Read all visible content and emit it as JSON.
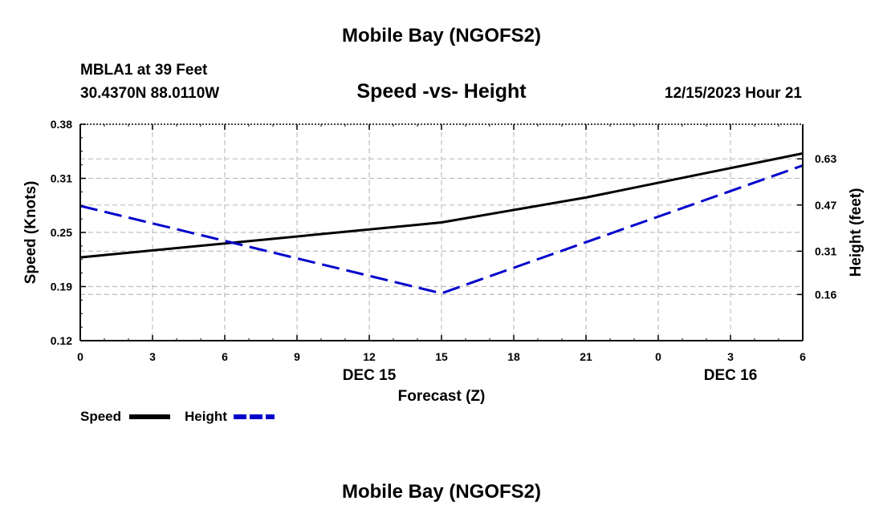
{
  "header": {
    "title": "Mobile Bay (NGOFS2)",
    "station": "MBLA1 at 39 Feet",
    "coords": "30.4370N  88.0110W",
    "subtitle": "Speed -vs- Height",
    "datetime": "12/15/2023 Hour 21"
  },
  "footer": {
    "title": "Mobile Bay (NGOFS2)"
  },
  "chart_data": {
    "type": "line",
    "title": "Speed -vs- Height",
    "xlabel": "Forecast (Z)",
    "ylabel": "Speed (Knots)",
    "y2label": "Height (feet)",
    "x": [
      0,
      15,
      21,
      30
    ],
    "x_ticks": [
      "0",
      "3",
      "6",
      "9",
      "12",
      "15",
      "18",
      "21",
      "0",
      "3",
      "6"
    ],
    "x_range": [
      0,
      30
    ],
    "date_labels": [
      {
        "label": "DEC 15",
        "x": 12
      },
      {
        "label": "DEC 16",
        "x": 27
      }
    ],
    "ylim": [
      0.12,
      0.38
    ],
    "y_ticks": [
      "0.38",
      "0.31",
      "0.25",
      "0.19",
      "0.12"
    ],
    "y2lim": [
      0.0,
      0.75
    ],
    "y2_ticks": [
      "0.63",
      "0.47",
      "0.31",
      "0.16"
    ],
    "grid": true,
    "legend_position": "bottom-left",
    "series": [
      {
        "name": "Speed",
        "axis": "left",
        "color": "#000000",
        "dash": "solid",
        "x": [
          0,
          15,
          21,
          30
        ],
        "values": [
          0.22,
          0.262,
          0.292,
          0.345
        ]
      },
      {
        "name": "Height",
        "axis": "right",
        "color": "#0000cc",
        "dash": "dashed",
        "x": [
          0,
          15,
          30
        ],
        "values": [
          0.467,
          0.164,
          0.607
        ]
      }
    ]
  }
}
